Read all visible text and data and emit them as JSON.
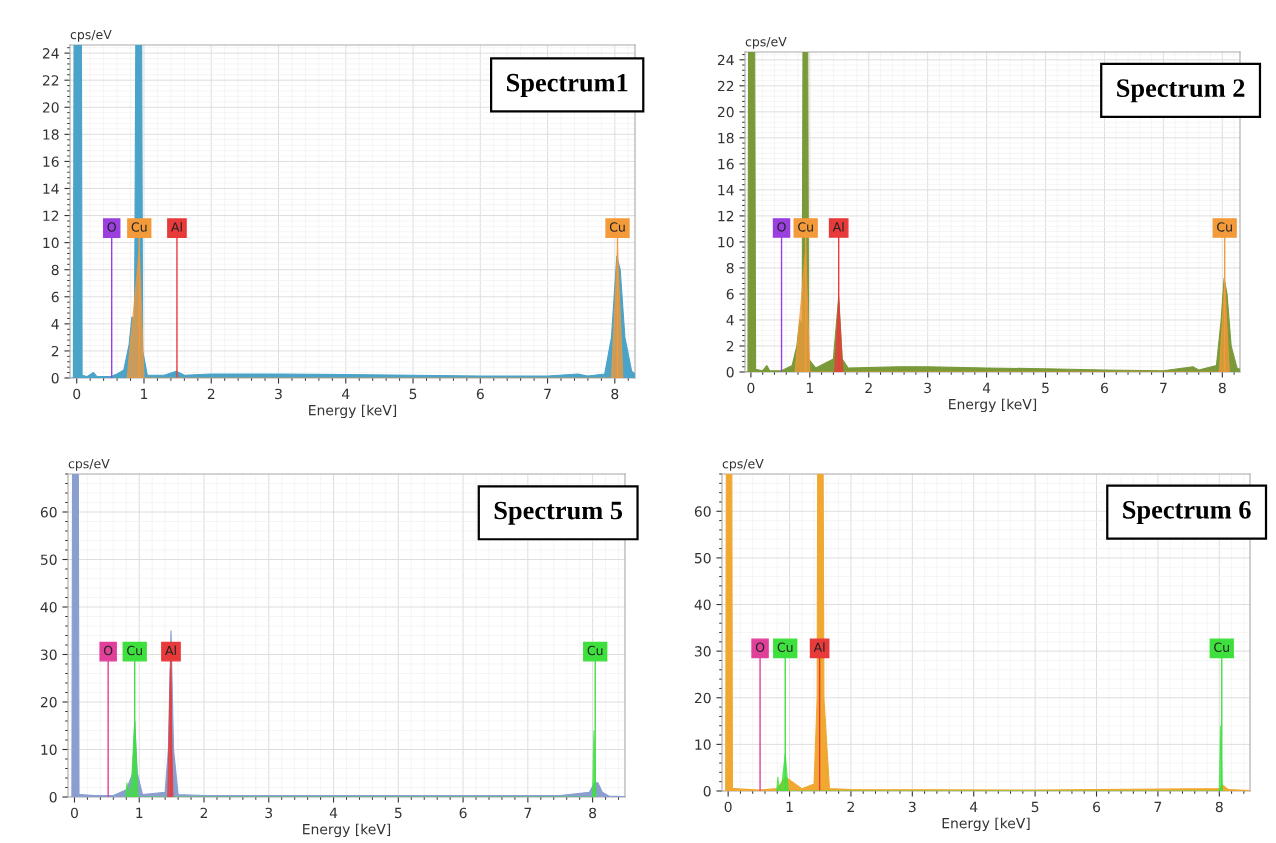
{
  "chart_data": [
    {
      "type": "area",
      "title": "Spectrum1",
      "xlabel": "Energy [keV]",
      "ylabel": "cps/eV",
      "xlim": [
        -0.1,
        8.3
      ],
      "ylim": [
        0,
        24.6
      ],
      "xticks": [
        0,
        1,
        2,
        3,
        4,
        5,
        6,
        7,
        8
      ],
      "yticks": [
        0,
        2,
        4,
        6,
        8,
        10,
        12,
        14,
        16,
        18,
        20,
        22,
        24
      ],
      "grid": true,
      "series": [
        {
          "color": "#4aa3c8",
          "x": [
            -0.08,
            -0.05,
            -0.03,
            0.06,
            0.08,
            0.15,
            0.25,
            0.3,
            0.5,
            0.6,
            0.7,
            0.78,
            0.82,
            0.86,
            0.9,
            0.95,
            0.98,
            1.05,
            1.3,
            1.48,
            1.6,
            2,
            3,
            4,
            5,
            6,
            7,
            7.45,
            7.6,
            7.85,
            7.95,
            8.03,
            8.08,
            8.15,
            8.25,
            8.3
          ],
          "values": [
            0,
            0,
            null,
            null,
            0.2,
            0.1,
            0.4,
            0.1,
            0.1,
            0.3,
            0.6,
            2.5,
            4.5,
            4.4,
            null,
            null,
            2,
            0.2,
            0.2,
            0.5,
            0.2,
            0.3,
            0.3,
            0.25,
            0.2,
            0.15,
            0.15,
            0.3,
            0.15,
            0.3,
            3,
            9,
            8,
            3,
            0.5,
            0.3
          ]
        },
        {
          "color": "#f39a3a",
          "x": [
            0.75,
            0.93,
            1.0,
            7.95,
            8.04,
            8.12
          ],
          "values": [
            0,
            9.5,
            0,
            0,
            9.5,
            0
          ]
        }
      ],
      "ref_lines": [
        {
          "axis": "x",
          "value": 0.52,
          "label": "O",
          "color": "#9b3fe0"
        },
        {
          "axis": "x",
          "value": 0.93,
          "label": "Cu",
          "color": "#f39a3a"
        },
        {
          "axis": "x",
          "value": 1.49,
          "label": "Al",
          "color": "#e83a3a"
        },
        {
          "axis": "x",
          "value": 8.04,
          "label": "Cu",
          "color": "#f39a3a"
        }
      ]
    },
    {
      "type": "area",
      "title": "Spectrum 2",
      "xlabel": "Energy [keV]",
      "ylabel": "cps/eV",
      "xlim": [
        -0.1,
        8.3
      ],
      "ylim": [
        0,
        24.6
      ],
      "xticks": [
        0,
        1,
        2,
        3,
        4,
        5,
        6,
        7,
        8
      ],
      "yticks": [
        0,
        2,
        4,
        6,
        8,
        10,
        12,
        14,
        16,
        18,
        20,
        22,
        24
      ],
      "grid": true,
      "series": [
        {
          "color": "#7a9a3a",
          "x": [
            -0.08,
            -0.05,
            -0.03,
            0.05,
            0.08,
            0.2,
            0.27,
            0.32,
            0.52,
            0.7,
            0.78,
            0.83,
            0.87,
            0.9,
            0.95,
            0.98,
            1.1,
            1.4,
            1.49,
            1.55,
            1.65,
            2.5,
            3,
            4,
            5,
            6,
            7,
            7.5,
            7.6,
            7.9,
            7.98,
            8.03,
            8.08,
            8.15,
            8.25,
            8.3
          ],
          "values": [
            0,
            0,
            null,
            null,
            0.2,
            0.1,
            0.5,
            0.1,
            0.1,
            0.5,
            2,
            4,
            3.5,
            null,
            null,
            1,
            0.3,
            1,
            5.8,
            1,
            0.3,
            0.4,
            0.4,
            0.3,
            0.25,
            0.15,
            0.1,
            0.4,
            0.15,
            0.5,
            4,
            7.2,
            6,
            2,
            0.3,
            0.2
          ]
        },
        {
          "color": "#f39a3a",
          "x": [
            0.75,
            0.93,
            1.0,
            7.95,
            8.04,
            8.12
          ],
          "values": [
            0,
            9.5,
            0,
            0,
            7,
            0
          ]
        },
        {
          "color": "#e83a3a",
          "x": [
            1.42,
            1.49,
            1.56
          ],
          "values": [
            0,
            5.5,
            0
          ]
        }
      ],
      "ref_lines": [
        {
          "axis": "x",
          "value": 0.52,
          "label": "O",
          "color": "#9b3fe0"
        },
        {
          "axis": "x",
          "value": 0.93,
          "label": "Cu",
          "color": "#f39a3a"
        },
        {
          "axis": "x",
          "value": 1.49,
          "label": "Al",
          "color": "#e83a3a"
        },
        {
          "axis": "x",
          "value": 8.04,
          "label": "Cu",
          "color": "#f39a3a"
        }
      ]
    },
    {
      "type": "area",
      "title": "Spectrum 5",
      "xlabel": "Energy [keV]",
      "ylabel": "cps/eV",
      "xlim": [
        -0.1,
        8.5
      ],
      "ylim": [
        0,
        68
      ],
      "xticks": [
        0,
        1,
        2,
        3,
        4,
        5,
        6,
        7,
        8
      ],
      "yticks": [
        0,
        10,
        20,
        30,
        40,
        50,
        60
      ],
      "grid": true,
      "series": [
        {
          "color": "#8a9fcf",
          "x": [
            -0.06,
            -0.04,
            -0.02,
            0.05,
            0.07,
            0.1,
            0.3,
            0.6,
            0.8,
            0.9,
            0.93,
            0.97,
            1.05,
            1.4,
            1.45,
            1.49,
            1.53,
            1.6,
            2,
            5,
            7.5,
            7.95,
            8.03,
            8.08,
            8.15,
            8.25,
            8.5
          ],
          "values": [
            0,
            0,
            null,
            null,
            0.5,
            0.5,
            0.3,
            0.3,
            1.5,
            5,
            16,
            5,
            0.5,
            1,
            10,
            35,
            10,
            0.5,
            0.3,
            0.3,
            0.3,
            1,
            3,
            3,
            1,
            0.2,
            0.1
          ]
        },
        {
          "color": "#3ee03e",
          "x": [
            0.79,
            0.81,
            0.83,
            0.88,
            0.93,
            0.98,
            8.0,
            8.02,
            8.05
          ],
          "values": [
            0,
            3,
            0.5,
            3,
            16,
            0,
            0,
            14,
            0
          ]
        },
        {
          "color": "#e83a3a",
          "x": [
            1.44,
            1.48,
            1.52
          ],
          "values": [
            0,
            27,
            0
          ]
        }
      ],
      "ref_lines": [
        {
          "axis": "x",
          "value": 0.52,
          "label": "O",
          "color": "#e0409a"
        },
        {
          "axis": "x",
          "value": 0.93,
          "label": "Cu",
          "color": "#3ee03e"
        },
        {
          "axis": "x",
          "value": 1.49,
          "label": "Al",
          "color": "#e83a3a"
        },
        {
          "axis": "x",
          "value": 8.04,
          "label": "Cu",
          "color": "#3ee03e"
        }
      ]
    },
    {
      "type": "area",
      "title": "Spectrum 6",
      "xlabel": "Energy [keV]",
      "ylabel": "cps/eV",
      "xlim": [
        -0.1,
        8.5
      ],
      "ylim": [
        0,
        68
      ],
      "xticks": [
        0,
        1,
        2,
        3,
        4,
        5,
        6,
        7,
        8
      ],
      "yticks": [
        0,
        10,
        20,
        30,
        40,
        50,
        60
      ],
      "grid": true,
      "series": [
        {
          "color": "#f0a830",
          "x": [
            -0.06,
            -0.04,
            -0.02,
            0.05,
            0.07,
            0.1,
            0.5,
            0.8,
            0.93,
            1.2,
            1.4,
            1.45,
            1.47,
            1.53,
            1.56,
            1.65,
            2,
            5,
            8.0,
            8.05,
            8.15,
            8.5
          ],
          "values": [
            0,
            0,
            null,
            null,
            0.5,
            0.5,
            0.2,
            0.5,
            3,
            0.5,
            1.5,
            20,
            null,
            null,
            20,
            0.5,
            0.3,
            0.2,
            0.5,
            1.3,
            0.3,
            0.1
          ]
        },
        {
          "color": "#3ee03e",
          "x": [
            0.79,
            0.81,
            0.83,
            0.88,
            0.93,
            0.98,
            8.0,
            8.02,
            8.05
          ],
          "values": [
            0,
            3,
            0.5,
            2,
            8,
            0,
            0,
            14,
            0
          ]
        }
      ],
      "ref_lines": [
        {
          "axis": "x",
          "value": 0.52,
          "label": "O",
          "color": "#e0409a"
        },
        {
          "axis": "x",
          "value": 0.93,
          "label": "Cu",
          "color": "#3ee03e"
        },
        {
          "axis": "x",
          "value": 1.49,
          "label": "Al",
          "color": "#e83a3a"
        },
        {
          "axis": "x",
          "value": 8.04,
          "label": "Cu",
          "color": "#3ee03e"
        }
      ]
    }
  ]
}
